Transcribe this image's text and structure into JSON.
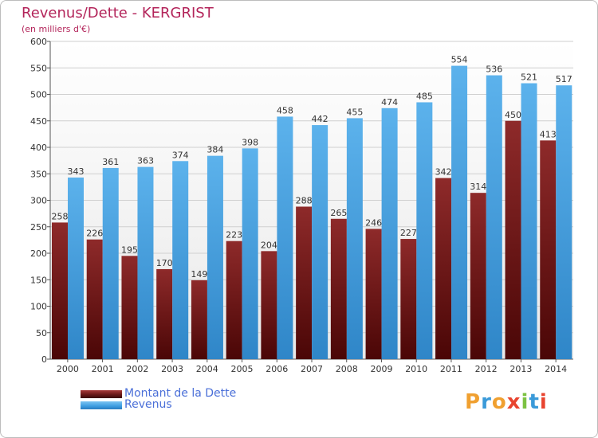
{
  "title": "Revenus/Dette - KERGRIST",
  "subtitle": "(en milliers d'€)",
  "colors": {
    "title": "#b3245a",
    "dette": "#6e1a1a",
    "revenus": "#3d9de0",
    "legend_text": "#4a6fd8"
  },
  "legend": [
    {
      "label": "Montant de la Dette",
      "color": "#6e1a1a"
    },
    {
      "label": "Revenus",
      "color": "#3d9de0"
    }
  ],
  "logo": {
    "text": "Proxiti"
  },
  "chart_data": {
    "type": "bar",
    "categories": [
      "2000",
      "2001",
      "2002",
      "2003",
      "2004",
      "2005",
      "2006",
      "2007",
      "2008",
      "2009",
      "2010",
      "2011",
      "2012",
      "2013",
      "2014"
    ],
    "series": [
      {
        "name": "Montant de la Dette",
        "values": [
          258,
          226,
          195,
          170,
          149,
          223,
          204,
          288,
          265,
          246,
          227,
          342,
          314,
          450,
          413
        ]
      },
      {
        "name": "Revenus",
        "values": [
          343,
          361,
          363,
          374,
          384,
          398,
          458,
          442,
          455,
          474,
          485,
          554,
          536,
          521,
          517
        ]
      }
    ],
    "ylim": [
      0,
      600
    ],
    "yticks": [
      0,
      50,
      100,
      150,
      200,
      250,
      300,
      350,
      400,
      450,
      500,
      550,
      600
    ],
    "grid": true,
    "legend_position": "bottom-left"
  }
}
